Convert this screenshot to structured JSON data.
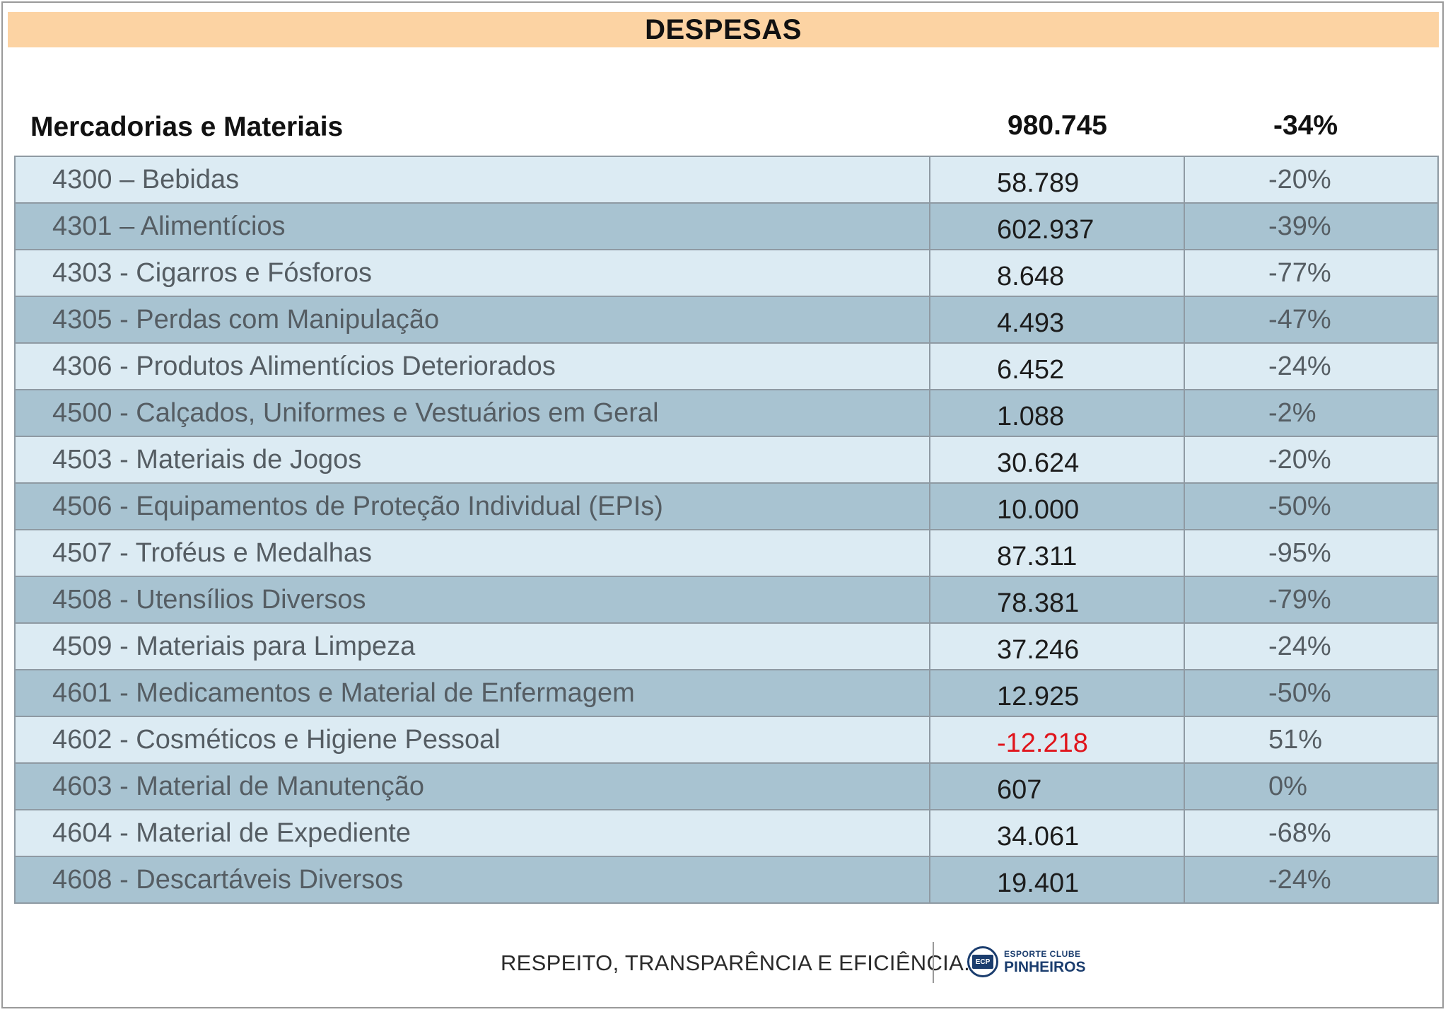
{
  "banner": {
    "title": "DESPESAS"
  },
  "summary": {
    "label": "Mercadorias e Materiais",
    "value": "980.745",
    "pct": "-34%"
  },
  "rows": [
    {
      "name": "4300 – Bebidas",
      "value": "58.789",
      "pct": "-20%",
      "negative": false
    },
    {
      "name": "4301 – Alimentícios",
      "value": "602.937",
      "pct": "-39%",
      "negative": false
    },
    {
      "name": "4303 - Cigarros e Fósforos",
      "value": "8.648",
      "pct": "-77%",
      "negative": false
    },
    {
      "name": "4305 - Perdas com Manipulação",
      "value": "4.493",
      "pct": "-47%",
      "negative": false
    },
    {
      "name": "4306 - Produtos Alimentícios Deteriorados",
      "value": "6.452",
      "pct": "-24%",
      "negative": false
    },
    {
      "name": "4500 - Calçados, Uniformes e Vestuários em Geral",
      "value": "1.088",
      "pct": "-2%",
      "negative": false
    },
    {
      "name": "4503 - Materiais de Jogos",
      "value": "30.624",
      "pct": "-20%",
      "negative": false
    },
    {
      "name": "4506 - Equipamentos de Proteção Individual (EPIs)",
      "value": "10.000",
      "pct": "-50%",
      "negative": false
    },
    {
      "name": "4507 - Troféus e Medalhas",
      "value": "87.311",
      "pct": "-95%",
      "negative": false
    },
    {
      "name": "4508 - Utensílios Diversos",
      "value": "78.381",
      "pct": "-79%",
      "negative": false
    },
    {
      "name": "4509 - Materiais para Limpeza",
      "value": "37.246",
      "pct": "-24%",
      "negative": false
    },
    {
      "name": "4601 - Medicamentos e Material de Enfermagem",
      "value": "12.925",
      "pct": "-50%",
      "negative": false
    },
    {
      "name": "4602 - Cosméticos e Higiene Pessoal",
      "value": "-12.218",
      "pct": "51%",
      "negative": true
    },
    {
      "name": "4603 - Material de Manutenção",
      "value": "607",
      "pct": "0%",
      "negative": false
    },
    {
      "name": "4604 - Material de Expediente",
      "value": "34.061",
      "pct": "-68%",
      "negative": false
    },
    {
      "name": "4608 - Descartáveis Diversos",
      "value": "19.401",
      "pct": "-24%",
      "negative": false
    }
  ],
  "footer": {
    "motto": "RESPEITO, TRANSPARÊNCIA E EFICIÊNCIA.",
    "logo_small": "ESPORTE CLUBE",
    "logo_big": "PINHEIROS",
    "logo_mark": "ECP"
  },
  "colors": {
    "banner": "#fcd3a3",
    "row_light": "#dcebf3",
    "row_dark": "#a8c3d1",
    "negative": "#e0141b",
    "brand": "#1b3d6e"
  }
}
